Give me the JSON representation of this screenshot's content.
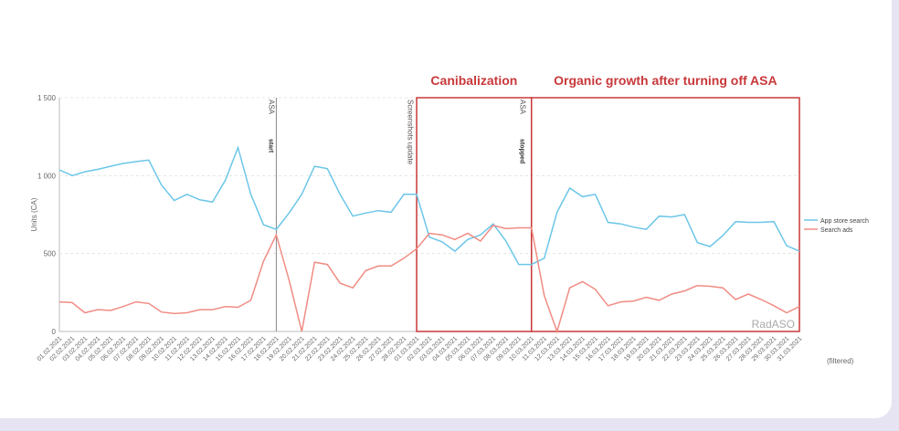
{
  "chart_data": {
    "type": "line",
    "ylabel": "Units (CA)",
    "categories": [
      "01.02.2021",
      "02.02.2021",
      "03.02.2021",
      "04.02.2021",
      "05.02.2021",
      "06.02.2021",
      "07.02.2021",
      "08.02.2021",
      "09.02.2021",
      "10.02.2021",
      "11.02.2021",
      "12.02.2021",
      "13.02.2021",
      "14.02.2021",
      "15.02.2021",
      "16.02.2021",
      "17.02.2021",
      "18.02.2021",
      "19.02.2021",
      "20.02.2021",
      "21.02.2021",
      "22.02.2021",
      "23.02.2021",
      "24.02.2021",
      "25.02.2021",
      "26.02.2021",
      "27.02.2021",
      "28.02.2021",
      "01.03.2021",
      "02.03.2021",
      "03.03.2021",
      "04.03.2021",
      "05.03.2021",
      "06.03.2021",
      "07.03.2021",
      "08.03.2021",
      "09.03.2021",
      "10.03.2021",
      "11.03.2021",
      "12.03.2021",
      "13.03.2021",
      "14.03.2021",
      "15.03.2021",
      "16.03.2021",
      "17.03.2021",
      "18.03.2021",
      "19.03.2021",
      "20.03.2021",
      "21.03.2021",
      "22.03.2021",
      "23.03.2021",
      "24.03.2021",
      "25.03.2021",
      "26.03.2021",
      "27.03.2021",
      "28.03.2021",
      "29.03.2021",
      "30.03.2021",
      "31.03.2021"
    ],
    "series": [
      {
        "name": "App store search",
        "color": "#6cc6e8",
        "values": [
          1037,
          1000,
          1025,
          1040,
          1060,
          1078,
          1090,
          1100,
          940,
          840,
          880,
          845,
          830,
          970,
          1180,
          880,
          685,
          655,
          760,
          880,
          1060,
          1045,
          880,
          740,
          760,
          775,
          765,
          880,
          880,
          605,
          575,
          515,
          590,
          620,
          690,
          580,
          430,
          430,
          470,
          765,
          920,
          865,
          880,
          700,
          690,
          670,
          655,
          740,
          735,
          750,
          570,
          545,
          615,
          705,
          700,
          700,
          705,
          550,
          515
        ]
      },
      {
        "name": "Search ads",
        "color": "#f08c84",
        "values": [
          190,
          185,
          120,
          140,
          135,
          160,
          190,
          180,
          125,
          115,
          120,
          140,
          140,
          160,
          155,
          200,
          450,
          620,
          330,
          0,
          445,
          430,
          310,
          280,
          390,
          420,
          420,
          470,
          530,
          630,
          620,
          590,
          630,
          580,
          680,
          660,
          665,
          665,
          230,
          0,
          280,
          320,
          270,
          165,
          190,
          195,
          220,
          200,
          240,
          260,
          295,
          290,
          280,
          205,
          240,
          205,
          165,
          120,
          160
        ]
      }
    ],
    "ylim": [
      0,
      1500
    ],
    "yticks": [
      0,
      500,
      {
        "value": 1000,
        "label": "1 000"
      },
      {
        "value": 1500,
        "label": "1 500"
      }
    ],
    "grid": true,
    "legend": "right",
    "markers": [
      {
        "label": "ASA",
        "sublabel": "start"
      },
      {
        "label": "Screenshots update"
      },
      {
        "label": "ASA",
        "sublabel": "stopped"
      }
    ],
    "regions": [
      {
        "label": "Canibalization",
        "color": "#c8383a"
      },
      {
        "label": "Organic growth after turning off ASA",
        "color": "#c8383a"
      }
    ],
    "watermark": "RadASO",
    "footnote": "(filtered)"
  }
}
